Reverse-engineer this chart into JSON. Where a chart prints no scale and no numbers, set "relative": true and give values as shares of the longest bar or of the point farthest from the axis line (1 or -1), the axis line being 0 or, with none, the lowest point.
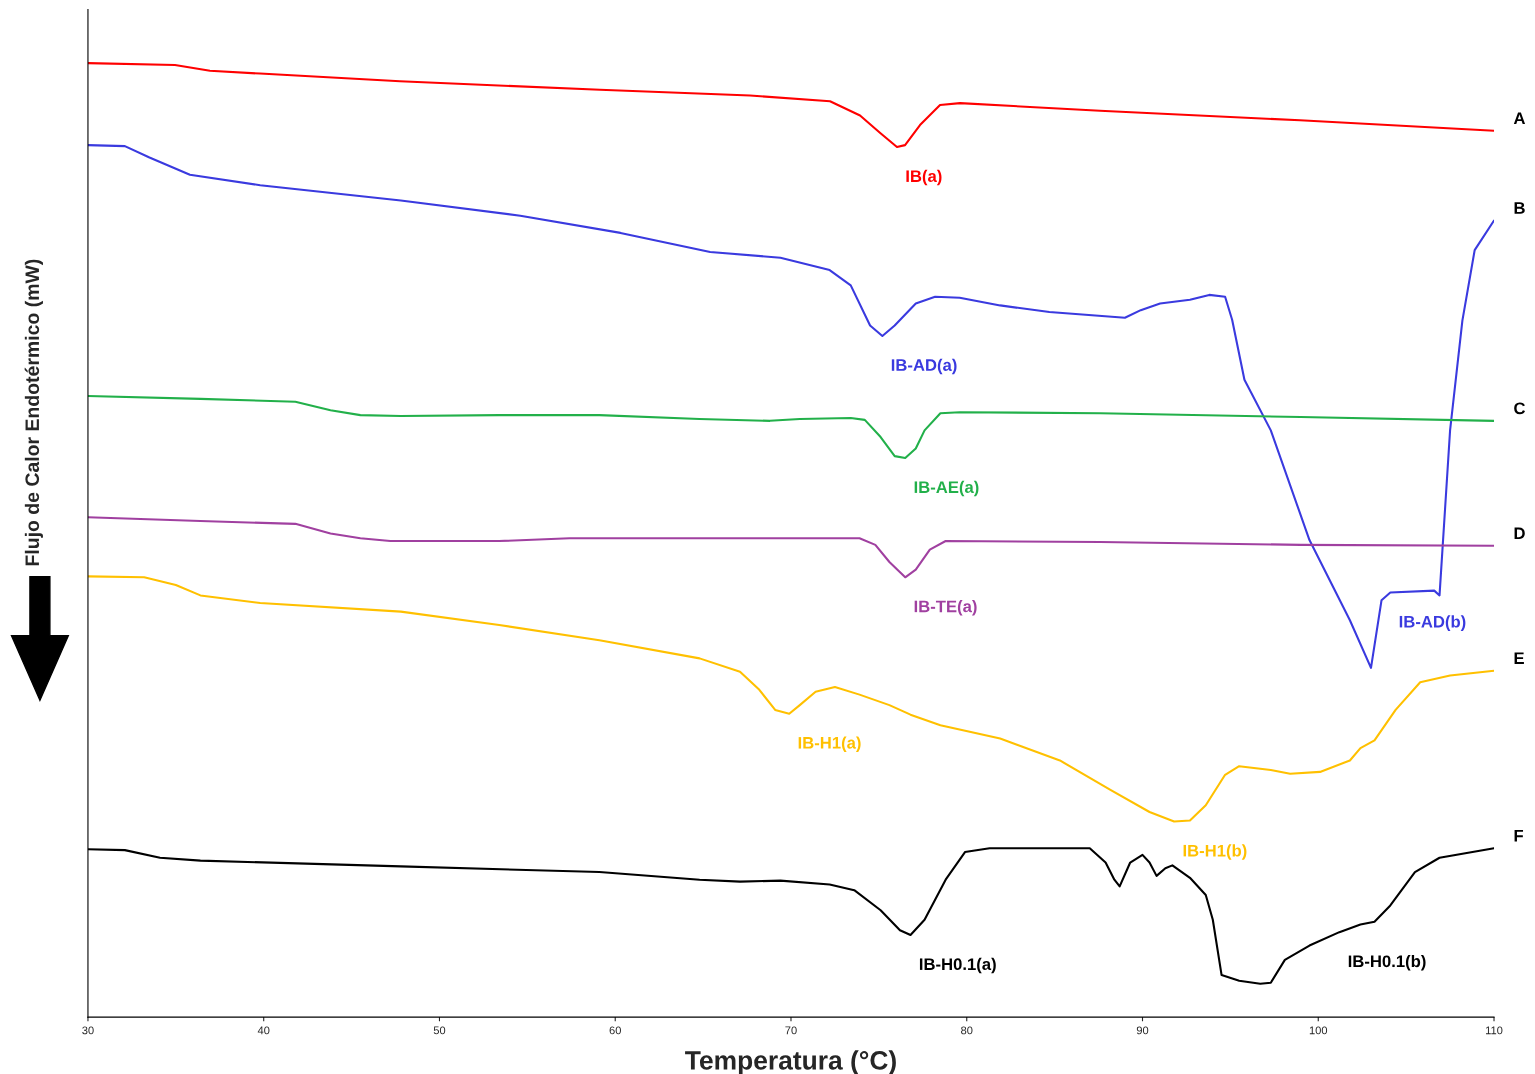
{
  "chart_data": {
    "type": "line",
    "relative": true,
    "xlabel": "Temperatura (°C)",
    "ylabel": "Flujo de Calor Endotérmico (mW)",
    "xlim": [
      30,
      110
    ],
    "xticks": [
      30,
      40,
      50,
      60,
      70,
      80,
      90,
      100,
      110
    ],
    "grid": false,
    "legend": false,
    "tick_labels": "x",
    "line_style": "solid",
    "marker": "none",
    "series": [
      {
        "name": "A",
        "color": "#ff0000",
        "x": [
          30,
          34.95,
          36.94,
          39.79,
          47.75,
          59.13,
          67.67,
          72.22,
          73.93,
          75.06,
          76.03,
          76.49,
          77.34,
          78.48,
          79.62,
          87.58,
          98.96,
          110
        ],
        "values": [
          1.0,
          0.998,
          0.992,
          0.989,
          0.981,
          0.972,
          0.966,
          0.96,
          0.945,
          0.927,
          0.912,
          0.914,
          0.935,
          0.956,
          0.958,
          0.95,
          0.94,
          0.929
        ]
      },
      {
        "name": "B",
        "color": "#3a3adf",
        "x": [
          30,
          32.1,
          33.5,
          35.8,
          39.8,
          47.8,
          54.6,
          60.3,
          65.4,
          69.4,
          72.2,
          73.4,
          74.5,
          75.2,
          75.9,
          77.1,
          78.2,
          79.6,
          81.9,
          84.7,
          89.0,
          89.9,
          91.0,
          92.7,
          93.8,
          94.7,
          95.1,
          95.8,
          97.3,
          99.5,
          101.8,
          103.0,
          103.6,
          104.1,
          106.6,
          106.9,
          107.5,
          108.2,
          108.9,
          110
        ],
        "values": [
          0.914,
          0.913,
          0.901,
          0.883,
          0.872,
          0.856,
          0.84,
          0.822,
          0.802,
          0.796,
          0.783,
          0.767,
          0.725,
          0.714,
          0.725,
          0.748,
          0.755,
          0.754,
          0.746,
          0.739,
          0.733,
          0.741,
          0.748,
          0.752,
          0.757,
          0.755,
          0.731,
          0.668,
          0.615,
          0.5,
          0.416,
          0.366,
          0.437,
          0.445,
          0.447,
          0.442,
          0.615,
          0.73,
          0.804,
          0.835
        ]
      },
      {
        "name": "C",
        "color": "#22b04a",
        "x": [
          30,
          36.4,
          41.8,
          43.8,
          45.5,
          47.8,
          53.4,
          59.1,
          64.8,
          68.8,
          70.5,
          73.4,
          74.2,
          75.1,
          75.9,
          76.5,
          77.1,
          77.6,
          78.5,
          79.6,
          87.6,
          99.0,
          110
        ],
        "values": [
          0.651,
          0.648,
          0.645,
          0.636,
          0.631,
          0.63,
          0.631,
          0.631,
          0.627,
          0.625,
          0.627,
          0.628,
          0.626,
          0.608,
          0.588,
          0.586,
          0.596,
          0.615,
          0.633,
          0.634,
          0.633,
          0.629,
          0.625
        ]
      },
      {
        "name": "D",
        "color": "#a040a0",
        "x": [
          30,
          36.4,
          41.8,
          43.8,
          45.5,
          47.2,
          53.4,
          57.4,
          64.8,
          73.9,
          74.8,
          75.6,
          76.5,
          77.1,
          77.9,
          78.8,
          87.6,
          99.0,
          110
        ],
        "values": [
          0.524,
          0.52,
          0.517,
          0.507,
          0.502,
          0.499,
          0.499,
          0.502,
          0.502,
          0.502,
          0.495,
          0.477,
          0.461,
          0.469,
          0.49,
          0.499,
          0.498,
          0.495,
          0.494
        ]
      },
      {
        "name": "E",
        "color": "#ffc000",
        "x": [
          30,
          33.2,
          35.0,
          36.4,
          39.8,
          47.8,
          53.4,
          59.1,
          64.8,
          67.1,
          68.2,
          69.1,
          69.9,
          70.5,
          71.4,
          72.5,
          73.9,
          75.6,
          76.8,
          78.5,
          81.9,
          85.3,
          88.2,
          90.4,
          91.8,
          92.7,
          93.6,
          94.7,
          95.5,
          97.3,
          98.4,
          100.1,
          101.8,
          102.4,
          103.2,
          104.4,
          105.8,
          107.5,
          110
        ],
        "values": [
          0.462,
          0.461,
          0.453,
          0.442,
          0.434,
          0.425,
          0.411,
          0.395,
          0.376,
          0.362,
          0.343,
          0.322,
          0.318,
          0.327,
          0.341,
          0.346,
          0.338,
          0.327,
          0.317,
          0.306,
          0.292,
          0.269,
          0.238,
          0.215,
          0.205,
          0.206,
          0.222,
          0.254,
          0.263,
          0.259,
          0.255,
          0.257,
          0.269,
          0.282,
          0.29,
          0.322,
          0.351,
          0.358,
          0.363
        ]
      },
      {
        "name": "F",
        "color": "#000000",
        "x": [
          30,
          32.1,
          34.1,
          36.4,
          47.8,
          59.1,
          64.8,
          67.1,
          69.4,
          72.2,
          73.6,
          75.1,
          76.2,
          76.8,
          77.6,
          78.8,
          79.9,
          81.3,
          87.0,
          87.9,
          88.4,
          88.7,
          89.3,
          90.0,
          90.4,
          90.8,
          91.3,
          91.7,
          92.7,
          93.6,
          94.0,
          94.5,
          95.5,
          96.7,
          97.3,
          98.1,
          99.5,
          101.2,
          102.4,
          103.2,
          104.1,
          105.5,
          106.9,
          110
        ],
        "values": [
          0.176,
          0.175,
          0.167,
          0.164,
          0.158,
          0.152,
          0.144,
          0.142,
          0.143,
          0.139,
          0.133,
          0.112,
          0.091,
          0.086,
          0.102,
          0.144,
          0.173,
          0.177,
          0.177,
          0.162,
          0.144,
          0.137,
          0.162,
          0.17,
          0.162,
          0.148,
          0.156,
          0.159,
          0.146,
          0.128,
          0.102,
          0.044,
          0.038,
          0.035,
          0.036,
          0.06,
          0.075,
          0.089,
          0.097,
          0.1,
          0.117,
          0.152,
          0.167,
          0.177
        ]
      }
    ],
    "annotations": [
      {
        "text": "IB(a)",
        "x": 76.03,
        "y": 0.912
      },
      {
        "text": "IB-AD(a)",
        "x": 75.2,
        "y": 0.714
      },
      {
        "text": "IB-AE(a)",
        "x": 76.5,
        "y": 0.586
      },
      {
        "text": "IB-TE(a)",
        "x": 76.5,
        "y": 0.461
      },
      {
        "text": "IB-AD(b)",
        "x": 104.1,
        "y": 0.445
      },
      {
        "text": "IB-H1(a)",
        "x": 69.9,
        "y": 0.318
      },
      {
        "text": "IB-H1(b)",
        "x": 91.8,
        "y": 0.205
      },
      {
        "text": "IB-H0.1(a)",
        "x": 76.8,
        "y": 0.086
      },
      {
        "text": "IB-H0.1(b)",
        "x": 101.2,
        "y": 0.089
      }
    ]
  }
}
